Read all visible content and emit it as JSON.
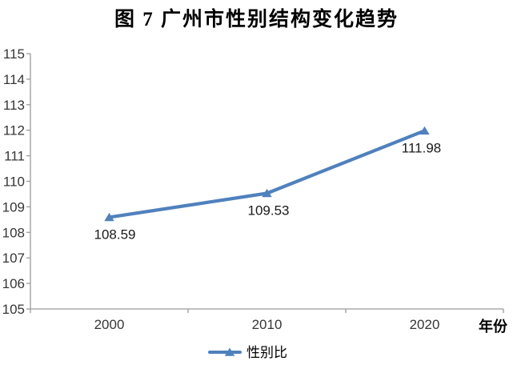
{
  "chart_data": {
    "type": "line",
    "title": "图 7 广州市性别结构变化趋势",
    "xlabel": "年份",
    "categories": [
      "2000",
      "2010",
      "2020"
    ],
    "series": [
      {
        "name": "性别比",
        "values": [
          108.59,
          109.53,
          111.98
        ],
        "data_labels": [
          "108.59",
          "109.53",
          "111.98"
        ],
        "color": "#4F81BD",
        "marker": "triangle"
      }
    ],
    "ylim": [
      105,
      115
    ],
    "ytick_step": 1,
    "yticks": [
      "105",
      "106",
      "107",
      "108",
      "109",
      "110",
      "111",
      "112",
      "113",
      "114",
      "115"
    ],
    "grid": false,
    "legend_position": "bottom",
    "axis_color": "#9B9B9B",
    "text_color": "#363636",
    "label_color": "#1A1A1A"
  }
}
